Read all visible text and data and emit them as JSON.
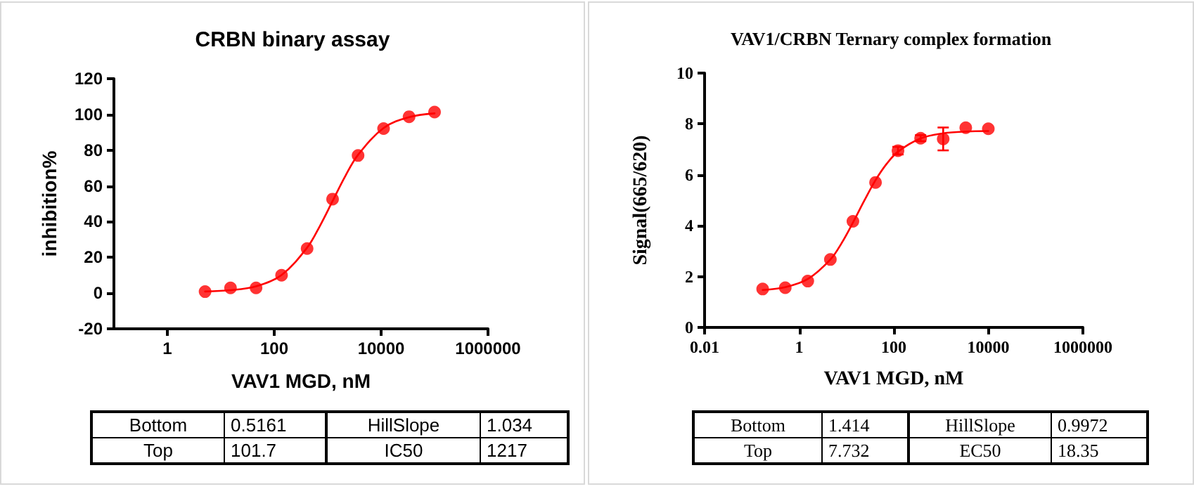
{
  "chart_data": [
    {
      "type": "scatter",
      "title": "CRBN binary assay",
      "xlabel": "VAV1 MGD, nM",
      "ylabel": "inhibition%",
      "log": "x",
      "xlim": [
        0.1,
        1000000
      ],
      "xticks": [
        1,
        100,
        10000,
        1000000
      ],
      "ylim": [
        -20,
        120
      ],
      "yticks": [
        -20,
        0,
        20,
        40,
        60,
        80,
        100,
        120
      ],
      "grid": false,
      "marker": "circle",
      "series": [
        {
          "color": "#ff0000",
          "x": [
            5.08,
            15.2,
            45.7,
            137,
            412,
            1235,
            3704,
            11111,
            33333,
            100000
          ],
          "values": [
            0.8,
            2.9,
            2.9,
            10,
            24.9,
            52.6,
            77,
            92.1,
            98.7,
            101.3
          ]
        },
        {
          "type": "line",
          "color": "#ff0000",
          "marker": "none",
          "x": [
            5.08,
            15.2,
            45.7,
            137,
            412,
            713,
            1235,
            2138,
            3704,
            11111,
            33333,
            100000
          ],
          "values": [
            0.9,
            1.6,
            3.8,
            10.1,
            25.4,
            37.5,
            51.5,
            65.5,
            77.4,
            92.4,
            98.5,
            100.6
          ]
        }
      ],
      "annotations": [
        "Bottom",
        "0.5161",
        "HillSlope",
        "1.034",
        "Top",
        "101.7",
        "IC50",
        "1217"
      ]
    },
    {
      "type": "scatter",
      "title": "VAV1/CRBN Ternary complex formation",
      "xlabel": "VAV1 MGD, nM",
      "ylabel": "Signal(665/620)",
      "log": "x",
      "xlim": [
        0.01,
        1000000
      ],
      "xticks": [
        0.01,
        1,
        100,
        10000,
        1000000
      ],
      "ylim": [
        0,
        10
      ],
      "yticks": [
        0,
        2,
        4,
        6,
        8,
        10
      ],
      "grid": false,
      "marker": "circle",
      "series": [
        {
          "color": "#ff0000",
          "x": [
            0.169,
            0.508,
            1.52,
            4.57,
            13.7,
            41.2,
            123,
            370,
            1111,
            3333,
            10000
          ],
          "values": [
            1.51,
            1.56,
            1.82,
            2.67,
            4.17,
            5.7,
            6.95,
            7.44,
            7.41,
            7.85,
            7.81
          ],
          "errors": [
            null,
            null,
            null,
            null,
            null,
            null,
            0.15,
            0.12,
            0.45,
            null,
            null
          ]
        },
        {
          "type": "line",
          "color": "#ff0000",
          "marker": "none",
          "x": [
            0.169,
            0.508,
            1.52,
            4.57,
            7.93,
            13.7,
            23.8,
            41.2,
            71.4,
            123,
            370,
            1111,
            3333,
            10000
          ],
          "values": [
            1.47,
            1.58,
            1.9,
            2.67,
            3.32,
            4.12,
            4.98,
            5.79,
            6.44,
            6.91,
            7.43,
            7.63,
            7.7,
            7.72
          ]
        }
      ],
      "annotations": [
        "Bottom",
        "1.414",
        "HillSlope",
        "0.9972",
        "Top",
        "7.732",
        "EC50",
        "18.35"
      ]
    }
  ]
}
